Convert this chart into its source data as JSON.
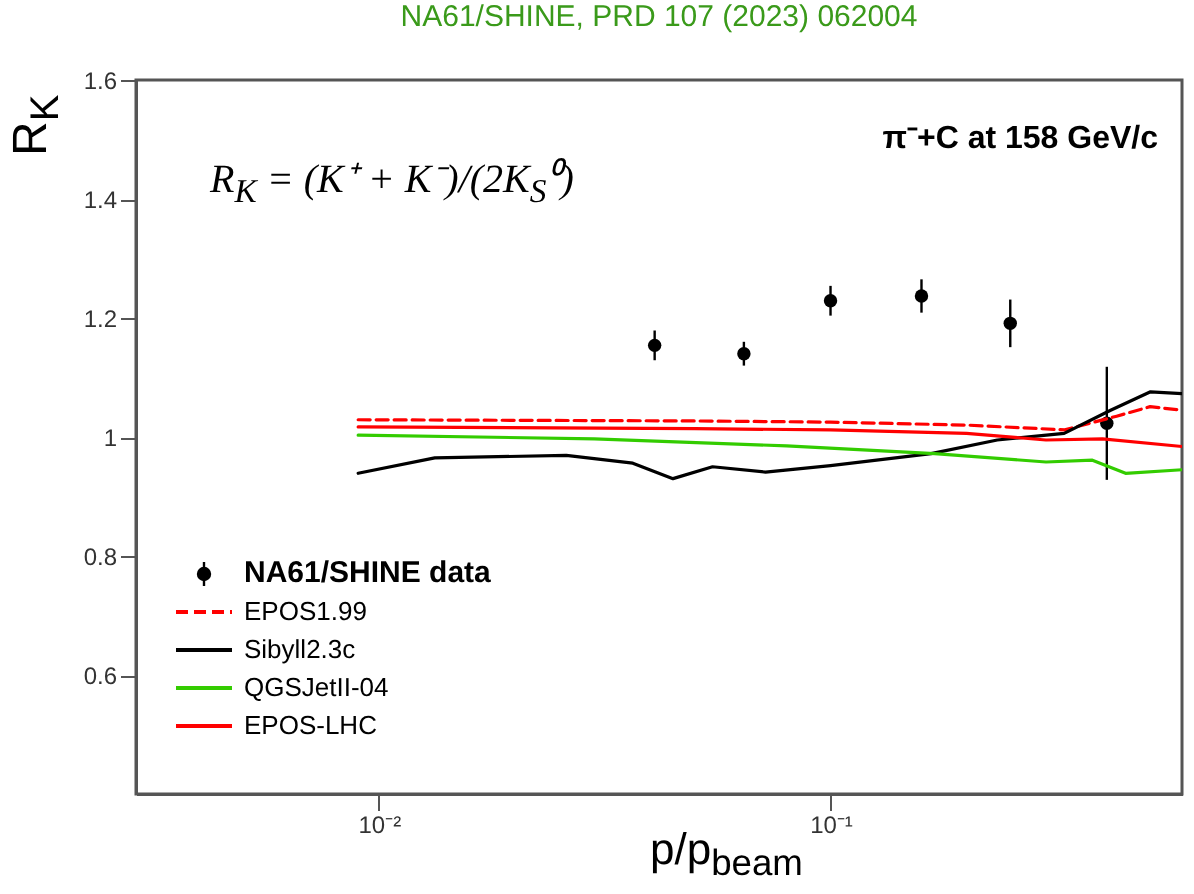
{
  "chart_data": {
    "type": "scatter",
    "title": "NA61/SHINE, PRD 107 (2023) 062004",
    "xlabel": "p/p$_{beam}$",
    "ylabel": "R$_{K}$",
    "annotations": [
      "R$_{K}$ = (K⁺ + K⁻)/(2K$_{S}$⁰)",
      "π⁻+C at 158 GeV/c"
    ],
    "log": "x",
    "xlim": [
      0.0029,
      0.6
    ],
    "ylim": [
      0.4,
      1.6
    ],
    "xticks": [
      {
        "value": 0.01,
        "label": "10⁻²"
      },
      {
        "value": 0.1,
        "label": "10⁻¹"
      }
    ],
    "yticks": [
      0.6,
      0.8,
      1,
      1.2,
      1.4,
      1.6
    ],
    "grid": false,
    "legend": "bottom left",
    "series": [
      {
        "name": "NA61/SHINE data",
        "marker": "circle",
        "color": "#000000",
        "x": [
          0.0408,
          0.0643,
          0.1,
          0.159,
          0.25,
          0.409
        ],
        "values": [
          1.154,
          1.14,
          1.229,
          1.237,
          1.191,
          1.023
        ],
        "errors": [
          0.025,
          0.02,
          0.025,
          0.028,
          0.04,
          0.095
        ]
      },
      {
        "name": "EPOS1.99",
        "type": "line",
        "color": "#ff0000",
        "line_style": "dashed",
        "x": [
          0.009,
          0.05,
          0.1,
          0.2,
          0.33,
          0.43,
          0.51,
          0.6
        ],
        "values": [
          1.029,
          1.027,
          1.025,
          1.02,
          1.012,
          1.035,
          1.051,
          1.045
        ]
      },
      {
        "name": "Sibyll2.3c",
        "type": "line",
        "color": "#000000",
        "x": [
          0.009,
          0.0133,
          0.026,
          0.0365,
          0.0448,
          0.0548,
          0.0718,
          0.1,
          0.167,
          0.234,
          0.329,
          0.417,
          0.511,
          0.6
        ],
        "values": [
          0.939,
          0.965,
          0.969,
          0.956,
          0.93,
          0.95,
          0.941,
          0.952,
          0.972,
          0.995,
          1.006,
          1.045,
          1.076,
          1.073
        ]
      },
      {
        "name": "QGSJetII-04",
        "type": "line",
        "color": "#33cc00",
        "x": [
          0.009,
          0.03,
          0.08,
          0.17,
          0.3,
          0.38,
          0.45,
          0.6
        ],
        "values": [
          1.003,
          0.997,
          0.985,
          0.972,
          0.958,
          0.961,
          0.939,
          0.945
        ]
      },
      {
        "name": "EPOS-LHC",
        "type": "line",
        "color": "#ff0000",
        "x": [
          0.009,
          0.05,
          0.1,
          0.2,
          0.3,
          0.4,
          0.6
        ],
        "values": [
          1.017,
          1.014,
          1.012,
          1.006,
          0.995,
          0.997,
          0.984
        ]
      }
    ]
  }
}
